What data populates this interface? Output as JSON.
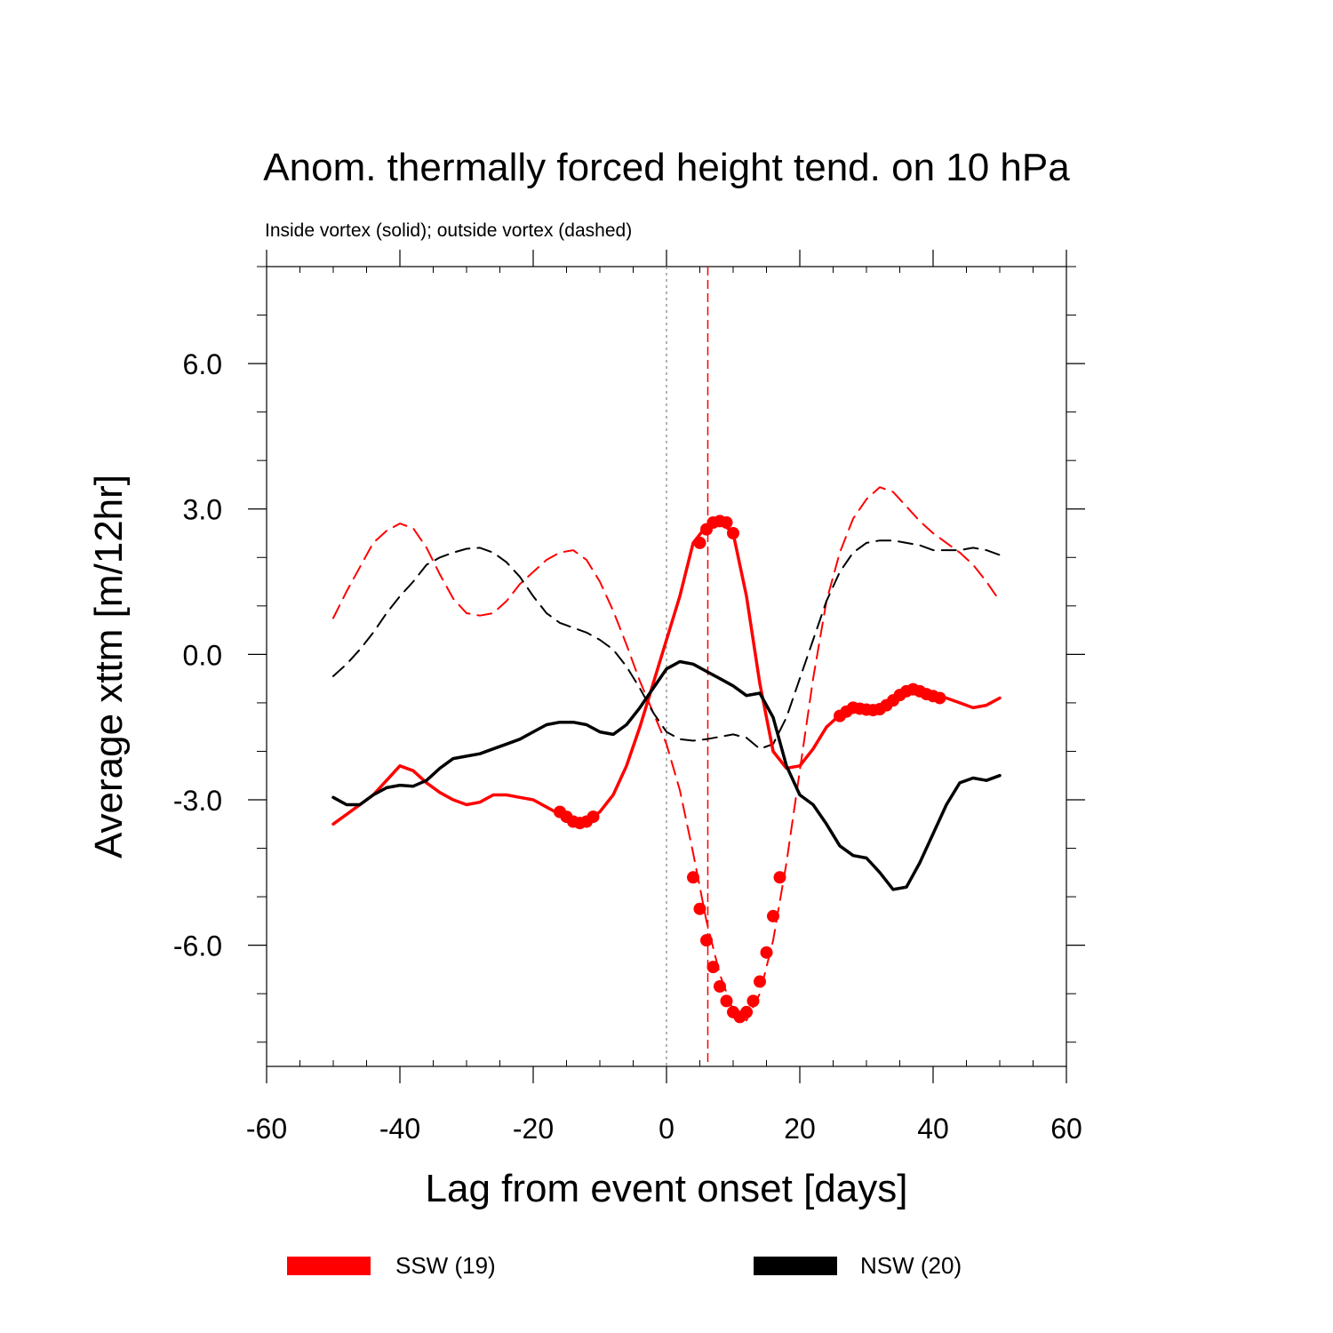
{
  "chart_data": {
    "type": "line",
    "title": "Anom. thermally forced height tend. on 10 hPa",
    "subtitle": "Inside vortex (solid); outside vortex (dashed)",
    "xlabel": "Lag from event onset [days]",
    "ylabel": "Average xttm [m/12hr]",
    "xlim": [
      -60,
      60
    ],
    "ylim": [
      -8.5,
      8.0
    ],
    "xticks": [
      "-60",
      "-40",
      "-20",
      "0",
      "20",
      "40",
      "60"
    ],
    "yticks": [
      "-6.0",
      "-3.0",
      "0.0",
      "3.0",
      "6.0"
    ],
    "reference_lines": [
      {
        "x": 0,
        "style": "dotted",
        "color": "#999999"
      },
      {
        "x": 6.2,
        "style": "dashed",
        "color": "#ff0000"
      }
    ],
    "legend": [
      {
        "label": "SSW (19)",
        "color": "#ff0000"
      },
      {
        "label": "NSW (20)",
        "color": "#000000"
      }
    ],
    "series": [
      {
        "name": "SSW (19)",
        "color": "#ff0000",
        "style": "solid",
        "width": 3.5,
        "x": [
          -50,
          -48,
          -46,
          -44,
          -42,
          -40,
          -38,
          -36,
          -34,
          -32,
          -30,
          -28,
          -26,
          -24,
          -22,
          -20,
          -18,
          -16,
          -14,
          -12,
          -10,
          -8,
          -6,
          -4,
          -2,
          0,
          2,
          4,
          6,
          8,
          10,
          12,
          14,
          16,
          18,
          20,
          22,
          24,
          26,
          28,
          30,
          32,
          34,
          36,
          38,
          40,
          42,
          44,
          46,
          48,
          50
        ],
        "y": [
          -3.5,
          -3.3,
          -3.1,
          -2.9,
          -2.6,
          -2.3,
          -2.4,
          -2.65,
          -2.85,
          -3.0,
          -3.1,
          -3.05,
          -2.9,
          -2.9,
          -2.95,
          -3.0,
          -3.15,
          -3.3,
          -3.45,
          -3.45,
          -3.25,
          -2.9,
          -2.3,
          -1.5,
          -0.6,
          0.3,
          1.2,
          2.3,
          2.65,
          2.75,
          2.5,
          1.2,
          -0.6,
          -2.0,
          -2.35,
          -2.3,
          -1.95,
          -1.5,
          -1.25,
          -1.1,
          -1.15,
          -1.1,
          -0.9,
          -0.75,
          -0.72,
          -0.85,
          -0.9,
          -1.0,
          -1.1,
          -1.05,
          -0.9
        ],
        "markers": {
          "x": [
            -16,
            -15,
            -14,
            -13,
            -12,
            -11,
            5,
            6,
            7,
            8,
            9,
            10,
            26,
            27,
            28,
            29,
            30,
            31,
            32,
            33,
            34,
            35,
            36,
            37,
            38,
            39,
            40,
            41
          ],
          "y": [
            -3.25,
            -3.35,
            -3.45,
            -3.48,
            -3.45,
            -3.35,
            2.3,
            2.58,
            2.72,
            2.75,
            2.72,
            2.5,
            -1.27,
            -1.18,
            -1.1,
            -1.12,
            -1.14,
            -1.15,
            -1.13,
            -1.05,
            -0.95,
            -0.84,
            -0.76,
            -0.72,
            -0.76,
            -0.82,
            -0.86,
            -0.9
          ]
        }
      },
      {
        "name": "NSW (20)",
        "color": "#000000",
        "style": "solid",
        "width": 3.5,
        "x": [
          -50,
          -48,
          -46,
          -44,
          -42,
          -40,
          -38,
          -36,
          -34,
          -32,
          -30,
          -28,
          -26,
          -24,
          -22,
          -20,
          -18,
          -16,
          -14,
          -12,
          -10,
          -8,
          -6,
          -4,
          -2,
          0,
          2,
          4,
          6,
          8,
          10,
          12,
          14,
          16,
          18,
          20,
          22,
          24,
          26,
          28,
          30,
          32,
          34,
          36,
          38,
          40,
          42,
          44,
          46,
          48,
          50
        ],
        "y": [
          -2.95,
          -3.1,
          -3.1,
          -2.9,
          -2.75,
          -2.7,
          -2.72,
          -2.6,
          -2.35,
          -2.15,
          -2.1,
          -2.05,
          -1.95,
          -1.85,
          -1.75,
          -1.6,
          -1.45,
          -1.4,
          -1.4,
          -1.45,
          -1.6,
          -1.65,
          -1.45,
          -1.1,
          -0.7,
          -0.3,
          -0.15,
          -0.2,
          -0.35,
          -0.5,
          -0.65,
          -0.85,
          -0.8,
          -1.3,
          -2.3,
          -2.9,
          -3.1,
          -3.5,
          -3.95,
          -4.15,
          -4.2,
          -4.5,
          -4.85,
          -4.8,
          -4.3,
          -3.7,
          -3.1,
          -2.65,
          -2.55,
          -2.6,
          -2.5
        ]
      },
      {
        "name": "SSW (19) outside",
        "color": "#ff0000",
        "style": "dashed",
        "width": 2,
        "x": [
          -50,
          -48,
          -46,
          -44,
          -42,
          -40,
          -38,
          -36,
          -34,
          -32,
          -30,
          -28,
          -26,
          -24,
          -22,
          -20,
          -18,
          -16,
          -14,
          -12,
          -10,
          -8,
          -6,
          -4,
          -2,
          0,
          2,
          4,
          6,
          8,
          10,
          12,
          14,
          16,
          18,
          20,
          22,
          24,
          26,
          28,
          30,
          32,
          34,
          36,
          38,
          40,
          42,
          44,
          46,
          48,
          50
        ],
        "y": [
          0.75,
          1.3,
          1.8,
          2.3,
          2.55,
          2.7,
          2.6,
          2.2,
          1.65,
          1.15,
          0.85,
          0.8,
          0.85,
          1.1,
          1.45,
          1.7,
          1.95,
          2.1,
          2.15,
          1.95,
          1.5,
          0.9,
          0.2,
          -0.55,
          -1.2,
          -1.85,
          -2.8,
          -4.1,
          -5.5,
          -6.6,
          -7.35,
          -7.55,
          -7.0,
          -5.9,
          -4.3,
          -2.4,
          -0.5,
          1.1,
          2.1,
          2.8,
          3.2,
          3.45,
          3.35,
          3.05,
          2.75,
          2.5,
          2.3,
          2.1,
          1.85,
          1.5,
          1.1
        ],
        "markers": {
          "x": [
            4,
            5,
            6,
            7,
            8,
            9,
            10,
            11,
            12,
            13,
            14,
            15,
            16,
            17
          ],
          "y": [
            -4.6,
            -5.25,
            -5.9,
            -6.45,
            -6.85,
            -7.15,
            -7.38,
            -7.48,
            -7.38,
            -7.15,
            -6.75,
            -6.15,
            -5.4,
            -4.6
          ]
        }
      },
      {
        "name": "NSW (20) outside",
        "color": "#000000",
        "style": "dashed",
        "width": 2,
        "x": [
          -50,
          -48,
          -46,
          -44,
          -42,
          -40,
          -38,
          -36,
          -34,
          -32,
          -30,
          -28,
          -26,
          -24,
          -22,
          -20,
          -18,
          -16,
          -14,
          -12,
          -10,
          -8,
          -6,
          -4,
          -2,
          0,
          2,
          4,
          6,
          8,
          10,
          12,
          14,
          16,
          18,
          20,
          22,
          24,
          26,
          28,
          30,
          32,
          34,
          36,
          38,
          40,
          42,
          44,
          46,
          48,
          50
        ],
        "y": [
          -0.45,
          -0.2,
          0.1,
          0.45,
          0.85,
          1.2,
          1.5,
          1.85,
          2.0,
          2.1,
          2.18,
          2.2,
          2.1,
          1.9,
          1.6,
          1.2,
          0.85,
          0.65,
          0.55,
          0.45,
          0.3,
          0.1,
          -0.25,
          -0.7,
          -1.2,
          -1.6,
          -1.75,
          -1.78,
          -1.75,
          -1.7,
          -1.65,
          -1.72,
          -1.95,
          -1.85,
          -1.3,
          -0.5,
          0.3,
          1.1,
          1.7,
          2.1,
          2.3,
          2.35,
          2.35,
          2.3,
          2.25,
          2.15,
          2.15,
          2.15,
          2.2,
          2.15,
          2.05
        ]
      }
    ]
  }
}
